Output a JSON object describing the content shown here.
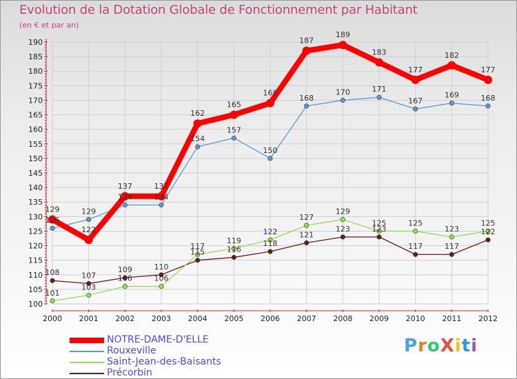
{
  "chart_data": {
    "type": "line",
    "title": "Evolution de la Dotation Globale de Fonctionnement par Habitant",
    "subtitle": "(en € et par an)",
    "xlabel": "",
    "ylabel": "",
    "categories": [
      "2000",
      "2001",
      "2002",
      "2003",
      "2004",
      "2005",
      "2006",
      "2007",
      "2008",
      "2009",
      "2010",
      "2011",
      "2012"
    ],
    "ylim": [
      100,
      190
    ],
    "yticks": [
      100,
      105,
      110,
      115,
      120,
      125,
      130,
      135,
      140,
      145,
      150,
      155,
      160,
      165,
      170,
      175,
      180,
      185,
      190
    ],
    "grid": true,
    "legend_position": "bottom-left",
    "series": [
      {
        "name": "NOTRE-DAME-D'ELLE",
        "color": "#ff0000",
        "values": [
          129,
          122,
          137,
          137,
          162,
          165,
          169,
          187,
          189,
          183,
          177,
          182,
          177
        ]
      },
      {
        "name": "Rouxeville",
        "color": "#5b9bd5",
        "values": [
          126,
          129,
          134,
          134,
          154,
          157,
          150,
          168,
          170,
          171,
          167,
          169,
          168
        ]
      },
      {
        "name": "Saint-Jean-des-Baisants",
        "color": "#99dd55",
        "values": [
          101,
          103,
          106,
          106,
          117,
          119,
          122,
          127,
          129,
          125,
          125,
          123,
          125
        ]
      },
      {
        "name": "Précorbin",
        "color": "#6b1a1a",
        "values": [
          108,
          107,
          109,
          110,
          115,
          116,
          118,
          121,
          123,
          123,
          117,
          117,
          122
        ]
      }
    ]
  },
  "logo": {
    "text": "ProXiti",
    "letter_colors": [
      "#4aa3df",
      "#e67e22",
      "#2ecc71",
      "#e74c3c",
      "#f1c40f",
      "#3498db",
      "#9b59b6"
    ]
  }
}
